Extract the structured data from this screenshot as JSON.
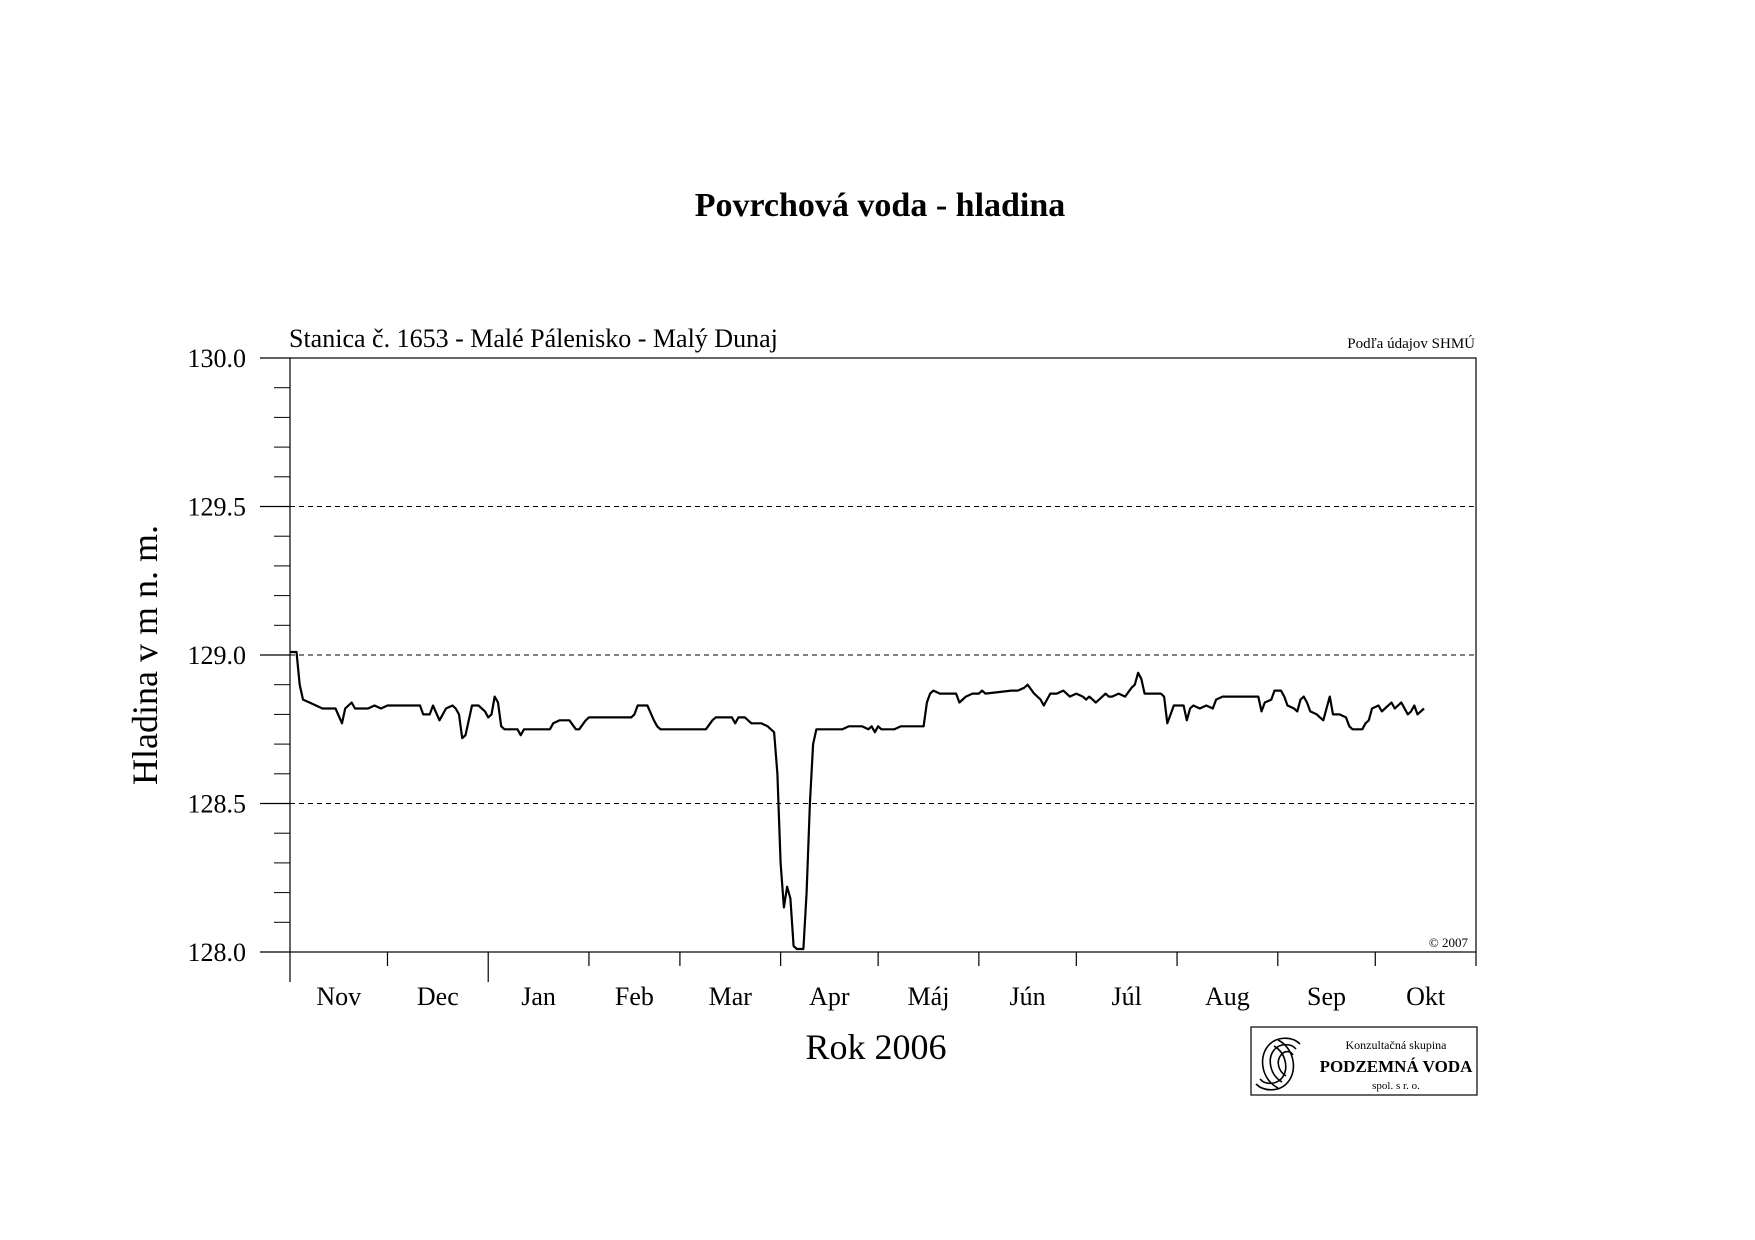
{
  "chart_data": {
    "type": "line",
    "title": "Povrchová voda - hladina",
    "subtitle": "Stanica č. 1653 - Malé Pálenisko - Malý Dunaj",
    "source_note": "Podľa údajov SHMÚ",
    "copyright": "© 2007",
    "xlabel": "Rok 2006",
    "ylabel": "Hladina v m n. m.",
    "ylim": [
      128.0,
      130.0
    ],
    "y_ticks": [
      "128.0",
      "128.5",
      "129.0",
      "129.5",
      "130.0"
    ],
    "y_minor_step": 0.1,
    "grid": "horizontal-dashed",
    "x_unit": "day-of-hydrological-year",
    "xlim": [
      0,
      365
    ],
    "months": [
      {
        "label": "Nov",
        "start": 0,
        "days": 30
      },
      {
        "label": "Dec",
        "start": 30,
        "days": 31
      },
      {
        "label": "Jan",
        "start": 61,
        "days": 31
      },
      {
        "label": "Feb",
        "start": 92,
        "days": 28
      },
      {
        "label": "Mar",
        "start": 120,
        "days": 31
      },
      {
        "label": "Apr",
        "start": 151,
        "days": 30
      },
      {
        "label": "Máj",
        "start": 181,
        "days": 31
      },
      {
        "label": "Jún",
        "start": 212,
        "days": 30
      },
      {
        "label": "Júl",
        "start": 242,
        "days": 31
      },
      {
        "label": "Aug",
        "start": 273,
        "days": 31
      },
      {
        "label": "Sep",
        "start": 304,
        "days": 30
      },
      {
        "label": "Okt",
        "start": 334,
        "days": 31
      }
    ],
    "series": [
      {
        "values": [
          [
            0,
            129.01
          ],
          [
            2,
            129.01
          ],
          [
            3,
            128.9
          ],
          [
            4,
            128.85
          ],
          [
            6,
            128.84
          ],
          [
            8,
            128.83
          ],
          [
            10,
            128.82
          ],
          [
            14,
            128.82
          ],
          [
            16,
            128.77
          ],
          [
            17,
            128.82
          ],
          [
            19,
            128.84
          ],
          [
            20,
            128.82
          ],
          [
            24,
            128.82
          ],
          [
            26,
            128.83
          ],
          [
            28,
            128.82
          ],
          [
            30,
            128.83
          ],
          [
            40,
            128.83
          ],
          [
            41,
            128.8
          ],
          [
            43,
            128.8
          ],
          [
            44,
            128.83
          ],
          [
            46,
            128.78
          ],
          [
            48,
            128.82
          ],
          [
            50,
            128.83
          ],
          [
            51,
            128.82
          ],
          [
            52,
            128.8
          ],
          [
            53,
            128.72
          ],
          [
            54,
            128.73
          ],
          [
            56,
            128.83
          ],
          [
            58,
            128.83
          ],
          [
            60,
            128.81
          ],
          [
            61,
            128.79
          ],
          [
            62,
            128.8
          ],
          [
            63,
            128.86
          ],
          [
            64,
            128.84
          ],
          [
            65,
            128.76
          ],
          [
            66,
            128.75
          ],
          [
            69,
            128.75
          ],
          [
            70,
            128.75
          ],
          [
            71,
            128.73
          ],
          [
            72,
            128.75
          ],
          [
            80,
            128.75
          ],
          [
            81,
            128.77
          ],
          [
            83,
            128.78
          ],
          [
            86,
            128.78
          ],
          [
            88,
            128.75
          ],
          [
            89,
            128.75
          ],
          [
            91,
            128.78
          ],
          [
            92,
            128.79
          ],
          [
            105,
            128.79
          ],
          [
            106,
            128.8
          ],
          [
            107,
            128.83
          ],
          [
            110,
            128.83
          ],
          [
            112,
            128.78
          ],
          [
            113,
            128.76
          ],
          [
            114,
            128.75
          ],
          [
            128,
            128.75
          ],
          [
            130,
            128.78
          ],
          [
            131,
            128.79
          ],
          [
            136,
            128.79
          ],
          [
            137,
            128.77
          ],
          [
            138,
            128.79
          ],
          [
            140,
            128.79
          ],
          [
            142,
            128.77
          ],
          [
            145,
            128.77
          ],
          [
            147,
            128.76
          ],
          [
            148,
            128.75
          ],
          [
            149,
            128.74
          ],
          [
            150,
            128.6
          ],
          [
            151,
            128.3
          ],
          [
            152,
            128.15
          ],
          [
            153,
            128.22
          ],
          [
            154,
            128.18
          ],
          [
            155,
            128.02
          ],
          [
            156,
            128.01
          ],
          [
            158,
            128.01
          ],
          [
            159,
            128.2
          ],
          [
            160,
            128.5
          ],
          [
            161,
            128.7
          ],
          [
            162,
            128.75
          ],
          [
            170,
            128.75
          ],
          [
            172,
            128.76
          ],
          [
            176,
            128.76
          ],
          [
            178,
            128.75
          ],
          [
            179,
            128.76
          ],
          [
            180,
            128.74
          ],
          [
            181,
            128.76
          ],
          [
            182,
            128.75
          ],
          [
            186,
            128.75
          ],
          [
            188,
            128.76
          ],
          [
            194,
            128.76
          ],
          [
            195,
            128.76
          ],
          [
            196,
            128.84
          ],
          [
            197,
            128.87
          ],
          [
            198,
            128.88
          ],
          [
            200,
            128.87
          ],
          [
            205,
            128.87
          ],
          [
            206,
            128.84
          ],
          [
            208,
            128.86
          ],
          [
            210,
            128.87
          ],
          [
            212,
            128.87
          ],
          [
            213,
            128.88
          ],
          [
            214,
            128.87
          ],
          [
            222,
            128.88
          ],
          [
            224,
            128.88
          ],
          [
            226,
            128.89
          ],
          [
            227,
            128.9
          ],
          [
            229,
            128.87
          ],
          [
            231,
            128.85
          ],
          [
            232,
            128.83
          ],
          [
            234,
            128.87
          ],
          [
            236,
            128.87
          ],
          [
            238,
            128.88
          ],
          [
            240,
            128.86
          ],
          [
            242,
            128.87
          ],
          [
            244,
            128.86
          ],
          [
            245,
            128.85
          ],
          [
            246,
            128.86
          ],
          [
            248,
            128.84
          ],
          [
            249,
            128.85
          ],
          [
            251,
            128.87
          ],
          [
            252,
            128.86
          ],
          [
            253,
            128.86
          ],
          [
            255,
            128.87
          ],
          [
            257,
            128.86
          ],
          [
            259,
            128.89
          ],
          [
            260,
            128.9
          ],
          [
            261,
            128.94
          ],
          [
            262,
            128.92
          ],
          [
            263,
            128.87
          ],
          [
            265,
            128.87
          ],
          [
            268,
            128.87
          ],
          [
            269,
            128.86
          ],
          [
            270,
            128.77
          ],
          [
            271,
            128.8
          ],
          [
            272,
            128.83
          ],
          [
            275,
            128.83
          ],
          [
            276,
            128.78
          ],
          [
            277,
            128.82
          ],
          [
            278,
            128.83
          ],
          [
            280,
            128.82
          ],
          [
            282,
            128.83
          ],
          [
            284,
            128.82
          ],
          [
            285,
            128.85
          ],
          [
            287,
            128.86
          ],
          [
            298,
            128.86
          ],
          [
            299,
            128.81
          ],
          [
            300,
            128.84
          ],
          [
            302,
            128.85
          ],
          [
            303,
            128.88
          ],
          [
            305,
            128.88
          ],
          [
            306,
            128.86
          ],
          [
            307,
            128.83
          ],
          [
            309,
            128.82
          ],
          [
            310,
            128.81
          ],
          [
            311,
            128.85
          ],
          [
            312,
            128.86
          ],
          [
            313,
            128.84
          ],
          [
            314,
            128.81
          ],
          [
            316,
            128.8
          ],
          [
            317,
            128.79
          ],
          [
            318,
            128.78
          ],
          [
            319,
            128.82
          ],
          [
            320,
            128.86
          ],
          [
            321,
            128.8
          ],
          [
            323,
            128.8
          ],
          [
            325,
            128.79
          ],
          [
            326,
            128.76
          ],
          [
            327,
            128.75
          ],
          [
            330,
            128.75
          ],
          [
            331,
            128.77
          ],
          [
            332,
            128.78
          ],
          [
            333,
            128.82
          ],
          [
            335,
            128.83
          ],
          [
            336,
            128.81
          ],
          [
            337,
            128.82
          ],
          [
            339,
            128.84
          ],
          [
            340,
            128.82
          ],
          [
            341,
            128.83
          ],
          [
            342,
            128.84
          ],
          [
            344,
            128.8
          ],
          [
            345,
            128.81
          ],
          [
            346,
            128.83
          ],
          [
            347,
            128.8
          ],
          [
            349,
            128.82
          ]
        ]
      }
    ]
  },
  "logo": {
    "line1": "Konzultačná skupina",
    "line2": "PODZEMNÁ VODA",
    "line3": "spol. s r. o."
  }
}
